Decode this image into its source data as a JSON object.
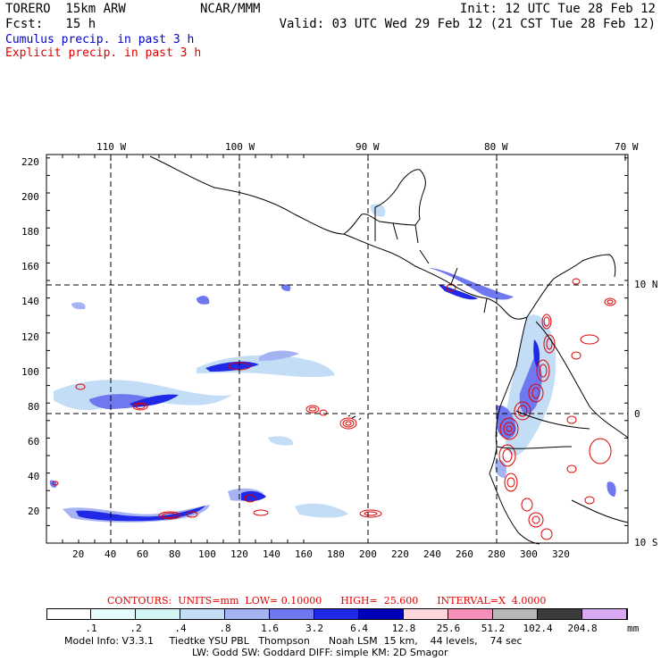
{
  "header": {
    "model": "TORERO  15km ARW",
    "org": "NCAR/MMM",
    "init": "Init: 12 UTC Tue 28 Feb 12",
    "fcst": "Fcst:   15 h",
    "valid": "Valid: 03 UTC Wed 29 Feb 12 (21 CST Tue 28 Feb 12)",
    "field_cumulus": "Cumulus precip. in past 3 h",
    "field_explicit": "Explicit precip. in past 3 h"
  },
  "map": {
    "lon_labels": [
      "110 W",
      "100 W",
      "90 W",
      "80 W",
      "70 W"
    ],
    "lat_labels": [
      "10 N",
      "0",
      "10 S"
    ],
    "y_ticks": [
      "220",
      "200",
      "180",
      "160",
      "140",
      "120",
      "100",
      "80",
      "60",
      "40",
      "20"
    ],
    "x_ticks": [
      "20",
      "40",
      "60",
      "80",
      "100",
      "120",
      "140",
      "160",
      "180",
      "200",
      "220",
      "240",
      "260",
      "280",
      "300",
      "320"
    ]
  },
  "contours": {
    "text": "CONTOURS:  UNITS=mm  LOW= 0.10000      HIGH=  25.600      INTERVAL=X  4.0000"
  },
  "legend": {
    "labels": [
      ".1",
      ".2",
      ".4",
      ".8",
      "1.6",
      "3.2",
      "6.4",
      "12.8",
      "25.6",
      "51.2",
      "102.4",
      "204.8",
      "mm"
    ],
    "colors": [
      "#ffffff",
      "#e6fbfb",
      "#d2f6f4",
      "#c2ddf5",
      "#a5b3f2",
      "#6f78ef",
      "#1f29e6",
      "#0000b8",
      "#fcd6da",
      "#f38fb8",
      "#b8b8b8",
      "#3a3a3a",
      "#d9a9f4"
    ]
  },
  "model_info": {
    "line1": "Model Info: V3.3.1     Tiedtke YSU PBL   Thompson      Noah LSM  15 km,    44 levels,    74 sec",
    "line2": "LW: Godd SW: Goddard DIFF: simple KM: 2D Smagor"
  }
}
